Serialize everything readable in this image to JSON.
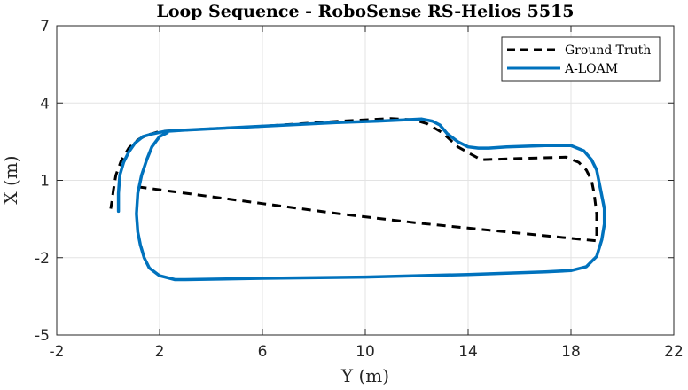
{
  "chart_data": {
    "type": "line",
    "title": "Loop Sequence - RoboSense RS-Helios 5515",
    "xlabel": "Y (m)",
    "ylabel": "X (m)",
    "xlim": [
      -2,
      22
    ],
    "ylim": [
      -5,
      7
    ],
    "xticks": [
      "-2",
      "2",
      "6",
      "10",
      "14",
      "18",
      "22"
    ],
    "yticks": [
      "-5",
      "-2",
      "1",
      "4",
      "7"
    ],
    "xtick_values": [
      -2,
      2,
      6,
      10,
      14,
      18,
      22
    ],
    "ytick_values": [
      -5,
      -2,
      1,
      4,
      7
    ],
    "grid": true,
    "legend_position": "top-right",
    "series": [
      {
        "name": "Ground-Truth",
        "color": "#000000",
        "style": "dashed",
        "x": [
          1.15,
          3.0,
          6.0,
          9.0,
          12.0,
          15.0,
          17.0,
          19.0,
          19.0,
          18.9,
          18.8,
          18.6,
          18.3,
          17.8,
          16.0,
          14.5,
          13.6,
          13.0,
          12.4,
          11.9,
          11.0,
          9.0,
          6.0,
          3.0,
          2.0,
          1.5,
          1.2,
          1.0,
          0.8,
          0.5,
          0.3,
          0.2,
          0.15,
          0.1
        ],
        "y": [
          0.75,
          0.5,
          0.1,
          -0.3,
          -0.65,
          -0.95,
          -1.15,
          -1.35,
          -0.3,
          0.5,
          1.0,
          1.4,
          1.7,
          1.9,
          1.85,
          1.8,
          2.3,
          2.85,
          3.2,
          3.35,
          3.4,
          3.3,
          3.1,
          2.95,
          2.9,
          2.75,
          2.6,
          2.45,
          2.25,
          1.75,
          1.2,
          0.6,
          0.2,
          -0.1
        ]
      },
      {
        "name": "A-LOAM",
        "color": "#0072BD",
        "style": "solid",
        "x": [
          0.4,
          0.4,
          0.45,
          0.6,
          0.8,
          1.05,
          1.35,
          1.7,
          2.2,
          3.0,
          6.0,
          9.0,
          10.5,
          11.5,
          12.2,
          12.6,
          12.9,
          13.2,
          13.6,
          14.0,
          14.4,
          14.8,
          15.5,
          17.0,
          18.0,
          18.5,
          18.8,
          19.0,
          19.1,
          19.2,
          19.3,
          19.3,
          19.2,
          19.0,
          18.6,
          18.0,
          17.0,
          14.0,
          10.0,
          6.0,
          3.0,
          2.6,
          2.0,
          1.6,
          1.4,
          1.25,
          1.15,
          1.1,
          1.15,
          1.3,
          1.5,
          1.7,
          2.0,
          2.3
        ],
        "y": [
          -0.2,
          0.5,
          1.2,
          1.7,
          2.1,
          2.45,
          2.7,
          2.8,
          2.9,
          2.95,
          3.1,
          3.25,
          3.3,
          3.35,
          3.38,
          3.3,
          3.15,
          2.8,
          2.5,
          2.3,
          2.25,
          2.25,
          2.3,
          2.35,
          2.35,
          2.15,
          1.8,
          1.4,
          0.9,
          0.4,
          -0.1,
          -0.7,
          -1.3,
          -1.95,
          -2.35,
          -2.5,
          -2.55,
          -2.65,
          -2.75,
          -2.8,
          -2.85,
          -2.85,
          -2.7,
          -2.4,
          -2.0,
          -1.5,
          -1.0,
          -0.3,
          0.5,
          1.2,
          1.8,
          2.3,
          2.7,
          2.85
        ]
      }
    ]
  }
}
